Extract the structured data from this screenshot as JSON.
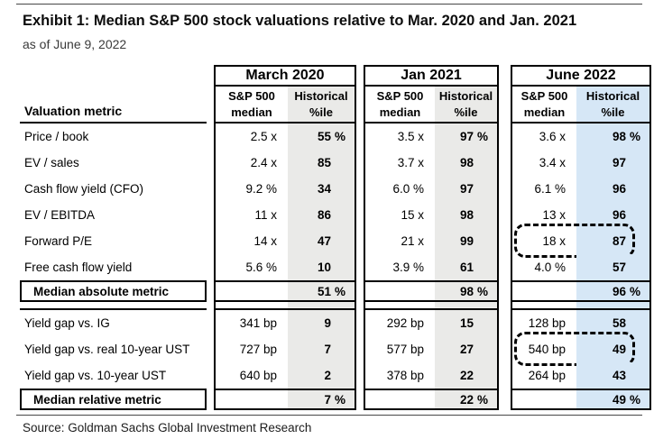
{
  "title": "Exhibit 1: Median S&P 500 stock valuations relative to Mar. 2020 and Jan. 2021",
  "subtitle": "as of June 9, 2022",
  "source": "Source: Goldman Sachs Global Investment Research",
  "colors": {
    "shade_gray": "#eaeae8",
    "shade_blue": "#d6e7f6",
    "border": "#000000"
  },
  "table": {
    "label_header": "Valuation metric",
    "columns": [
      {
        "title": "March 2020",
        "shade": "#eaeae8"
      },
      {
        "title": "Jan 2021",
        "shade": "#eaeae8"
      },
      {
        "title": "June 2022",
        "shade": "#d6e7f6"
      }
    ],
    "sub_headers": [
      {
        "line1": "S&P 500",
        "line2": "median"
      },
      {
        "line1": "Historical",
        "line2": "%ile"
      }
    ],
    "rows": [
      {
        "type": "data",
        "label": "Price / book",
        "cells": [
          {
            "m": "2.5 x",
            "p": "55",
            "u": "%"
          },
          {
            "m": "3.5 x",
            "p": "97",
            "u": "%"
          },
          {
            "m": "3.6 x",
            "p": "98",
            "u": "%"
          }
        ]
      },
      {
        "type": "data",
        "label": "EV / sales",
        "cells": [
          {
            "m": "2.4 x",
            "p": "85"
          },
          {
            "m": "3.7 x",
            "p": "98"
          },
          {
            "m": "3.4 x",
            "p": "97"
          }
        ]
      },
      {
        "type": "data",
        "label": "Cash flow yield (CFO)",
        "cells": [
          {
            "m": "9.2 %",
            "p": "34"
          },
          {
            "m": "6.0 %",
            "p": "97"
          },
          {
            "m": "6.1 %",
            "p": "96"
          }
        ]
      },
      {
        "type": "data",
        "label": "EV / EBITDA",
        "cells": [
          {
            "m": "11 x",
            "p": "86"
          },
          {
            "m": "15 x",
            "p": "98"
          },
          {
            "m": "13 x",
            "p": "96"
          }
        ]
      },
      {
        "type": "data",
        "label": "Forward P/E",
        "cells": [
          {
            "m": "14 x",
            "p": "47"
          },
          {
            "m": "21 x",
            "p": "99"
          },
          {
            "m": "18 x",
            "p": "87",
            "highlight": true
          }
        ]
      },
      {
        "type": "data",
        "label": "Free cash flow yield",
        "cells": [
          {
            "m": "5.6 %",
            "p": "10"
          },
          {
            "m": "3.9 %",
            "p": "61"
          },
          {
            "m": "4.0 %",
            "p": "57"
          }
        ]
      },
      {
        "type": "median",
        "label": "Median absolute metric",
        "cells": [
          {
            "m": "",
            "p": "51",
            "u": "%"
          },
          {
            "m": "",
            "p": "98",
            "u": "%"
          },
          {
            "m": "",
            "p": "96",
            "u": "%"
          }
        ]
      },
      {
        "type": "gap"
      },
      {
        "type": "data",
        "label": "Yield gap vs. IG",
        "cells": [
          {
            "m": "341 bp",
            "p": "9"
          },
          {
            "m": "292 bp",
            "p": "15"
          },
          {
            "m": "128 bp",
            "p": "58"
          }
        ]
      },
      {
        "type": "data",
        "label": "Yield gap vs. real 10-year UST",
        "cells": [
          {
            "m": "727 bp",
            "p": "7"
          },
          {
            "m": "577 bp",
            "p": "27"
          },
          {
            "m": "540 bp",
            "p": "49",
            "highlight": true
          }
        ]
      },
      {
        "type": "data",
        "label": "Yield gap vs. 10-year UST",
        "cells": [
          {
            "m": "640 bp",
            "p": "2"
          },
          {
            "m": "378 bp",
            "p": "22"
          },
          {
            "m": "264 bp",
            "p": "43"
          }
        ]
      },
      {
        "type": "median",
        "label": "Median relative metric",
        "cells": [
          {
            "m": "",
            "p": "7",
            "u": "%"
          },
          {
            "m": "",
            "p": "22",
            "u": "%"
          },
          {
            "m": "",
            "p": "49",
            "u": "%"
          }
        ]
      }
    ]
  }
}
